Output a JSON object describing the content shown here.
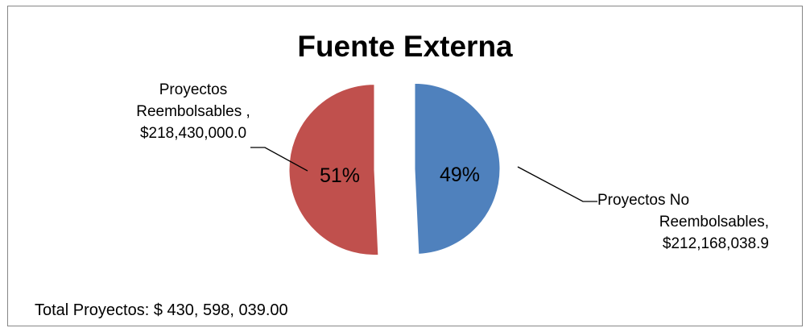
{
  "chart_data": {
    "type": "pie",
    "title": "Fuente Externa",
    "slices": [
      {
        "label_lines": [
          "Proyectos No",
          "Reembolsables,",
          "$212,168,038.9"
        ],
        "value": 212168038.9,
        "percent_label": "49%",
        "color": "#4f81bd"
      },
      {
        "label_lines": [
          "Proyectos",
          "Reembolsables ,",
          "$218,430,000.0"
        ],
        "value": 218430000.0,
        "percent_label": "51%",
        "color": "#c0504d"
      }
    ],
    "legend": "none",
    "exploded": true
  },
  "footer": {
    "total_text": "Total Proyectos: $ 430, 598, 039.00"
  }
}
